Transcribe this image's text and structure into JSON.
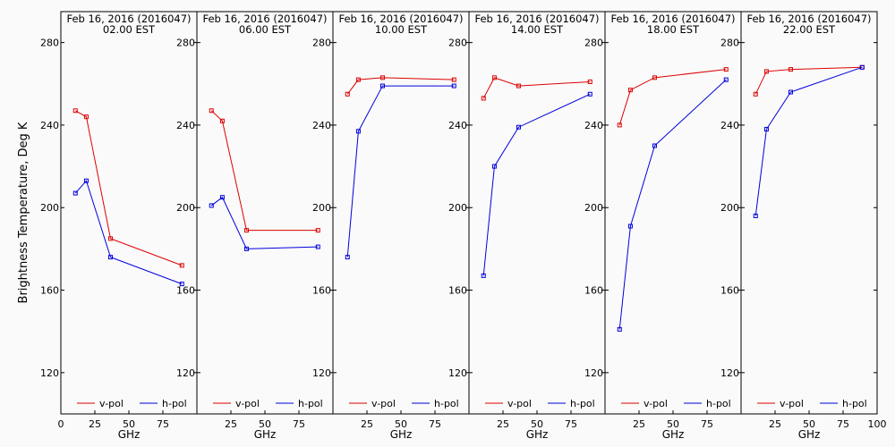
{
  "figure": {
    "ylabel": "Brightness Temperature, Deg K",
    "xlabel": "GHz",
    "colors": {
      "vpol": "#dd0000",
      "hpol": "#0000dd",
      "axis": "#000000",
      "background": "#fafafa"
    }
  },
  "chart_data": [
    {
      "type": "line",
      "title": "Feb 16, 2016 (2016047)",
      "subtitle": "02.00 EST",
      "xlabel": "GHz",
      "ylabel": "Brightness Temperature, Deg K",
      "xlim": [
        0,
        100
      ],
      "ylim": [
        100,
        295
      ],
      "x_ticks": [
        "0",
        "25",
        "50",
        "75"
      ],
      "y_ticks": [
        "120",
        "160",
        "200",
        "240",
        "280"
      ],
      "legend": "bottom",
      "series": [
        {
          "name": "v-pol",
          "x": [
            10.7,
            18.7,
            36.5,
            89.0
          ],
          "y": [
            247,
            244,
            185,
            172
          ]
        },
        {
          "name": "h-pol",
          "x": [
            10.7,
            18.7,
            36.5,
            89.0
          ],
          "y": [
            207,
            213,
            176,
            163
          ]
        }
      ]
    },
    {
      "type": "line",
      "title": "Feb 16, 2016 (2016047)",
      "subtitle": "06.00 EST",
      "xlabel": "GHz",
      "xlim": [
        0,
        100
      ],
      "ylim": [
        100,
        295
      ],
      "x_ticks": [
        "25",
        "50",
        "75"
      ],
      "y_ticks": [
        "120",
        "160",
        "200",
        "240",
        "280"
      ],
      "legend": "bottom",
      "series": [
        {
          "name": "v-pol",
          "x": [
            10.7,
            18.7,
            36.5,
            89.0
          ],
          "y": [
            247,
            242,
            189,
            189
          ]
        },
        {
          "name": "h-pol",
          "x": [
            10.7,
            18.7,
            36.5,
            89.0
          ],
          "y": [
            201,
            205,
            180,
            181
          ]
        }
      ]
    },
    {
      "type": "line",
      "title": "Feb 16, 2016 (2016047)",
      "subtitle": "10.00 EST",
      "xlabel": "GHz",
      "xlim": [
        0,
        100
      ],
      "ylim": [
        100,
        295
      ],
      "x_ticks": [
        "25",
        "50",
        "75"
      ],
      "y_ticks": [
        "120",
        "160",
        "200",
        "240",
        "280"
      ],
      "legend": "bottom",
      "series": [
        {
          "name": "v-pol",
          "x": [
            10.7,
            18.7,
            36.5,
            89.0
          ],
          "y": [
            255,
            262,
            263,
            262
          ]
        },
        {
          "name": "h-pol",
          "x": [
            10.7,
            18.7,
            36.5,
            89.0
          ],
          "y": [
            176,
            237,
            259,
            259
          ]
        }
      ]
    },
    {
      "type": "line",
      "title": "Feb 16, 2016 (2016047)",
      "subtitle": "14.00 EST",
      "xlabel": "GHz",
      "xlim": [
        0,
        100
      ],
      "ylim": [
        100,
        295
      ],
      "x_ticks": [
        "25",
        "50",
        "75"
      ],
      "y_ticks": [
        "120",
        "160",
        "200",
        "240",
        "280"
      ],
      "legend": "bottom",
      "series": [
        {
          "name": "v-pol",
          "x": [
            10.7,
            18.7,
            36.5,
            89.0
          ],
          "y": [
            253,
            263,
            259,
            261
          ]
        },
        {
          "name": "h-pol",
          "x": [
            10.7,
            18.7,
            36.5,
            89.0
          ],
          "y": [
            167,
            220,
            239,
            255
          ]
        }
      ]
    },
    {
      "type": "line",
      "title": "Feb 16, 2016 (2016047)",
      "subtitle": "18.00 EST",
      "xlabel": "GHz",
      "xlim": [
        0,
        100
      ],
      "ylim": [
        100,
        295
      ],
      "x_ticks": [
        "25",
        "50",
        "75"
      ],
      "y_ticks": [
        "120",
        "160",
        "200",
        "240",
        "280"
      ],
      "legend": "bottom",
      "series": [
        {
          "name": "v-pol",
          "x": [
            10.7,
            18.7,
            36.5,
            89.0
          ],
          "y": [
            240,
            257,
            263,
            267
          ]
        },
        {
          "name": "h-pol",
          "x": [
            10.7,
            18.7,
            36.5,
            89.0
          ],
          "y": [
            141,
            191,
            230,
            262
          ]
        }
      ]
    },
    {
      "type": "line",
      "title": "Feb 16, 2016 (2016047)",
      "subtitle": "22.00 EST",
      "xlabel": "GHz",
      "xlim": [
        0,
        100
      ],
      "ylim": [
        100,
        295
      ],
      "x_ticks": [
        "25",
        "50",
        "75",
        "100"
      ],
      "y_ticks": [
        "120",
        "160",
        "200",
        "240",
        "280"
      ],
      "legend": "bottom",
      "series": [
        {
          "name": "v-pol",
          "x": [
            10.7,
            18.7,
            36.5,
            89.0
          ],
          "y": [
            255,
            266,
            267,
            268
          ]
        },
        {
          "name": "h-pol",
          "x": [
            10.7,
            18.7,
            36.5,
            89.0
          ],
          "y": [
            196,
            238,
            256,
            268
          ]
        }
      ]
    }
  ]
}
